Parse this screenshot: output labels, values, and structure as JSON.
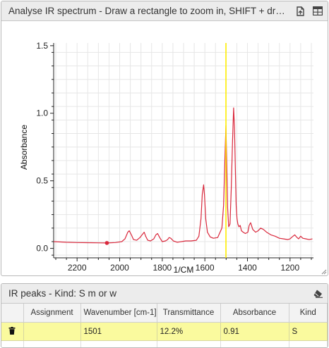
{
  "top_panel": {
    "title": "Analyse IR spectrum - Draw a rectangle to zoom in, SHIFT + drag…",
    "icons": [
      "export-icon",
      "table-view-icon"
    ]
  },
  "chart_data": {
    "type": "line",
    "title": "",
    "xlabel": "1/CM",
    "ylabel": "Absorbance",
    "xlim": [
      2310,
      1090
    ],
    "ylim": [
      -0.07,
      1.52
    ],
    "x_reversed": true,
    "x_ticks": [
      2200,
      2000,
      1800,
      1600,
      1400,
      1200
    ],
    "y_ticks": [
      0.0,
      0.5,
      1.0,
      1.5
    ],
    "x_tick_labels": [
      "2200",
      "2000",
      "1800",
      "1600",
      "1400",
      "1200"
    ],
    "y_tick_labels": [
      "0.0",
      "0.5",
      "1.0",
      "1.5"
    ],
    "grid": true,
    "line_color": "#d9283c",
    "cursor_color": "#ffee00",
    "cursor_x": 1501,
    "marker": {
      "x": 2060,
      "y": 0.04
    },
    "series": [
      {
        "x": [
          2310,
          2250,
          2200,
          2150,
          2100,
          2060,
          2020,
          1990,
          1975,
          1962,
          1955,
          1945,
          1935,
          1920,
          1905,
          1895,
          1885,
          1878,
          1868,
          1855,
          1840,
          1830,
          1822,
          1812,
          1800,
          1785,
          1775,
          1768,
          1760,
          1748,
          1730,
          1710,
          1690,
          1665,
          1640,
          1628,
          1618,
          1612,
          1606,
          1602,
          1596,
          1588,
          1575,
          1560,
          1540,
          1520,
          1512,
          1506,
          1501,
          1497,
          1493,
          1488,
          1482,
          1476,
          1470,
          1465,
          1461,
          1457,
          1453,
          1449,
          1445,
          1440,
          1434,
          1428,
          1420,
          1410,
          1398,
          1392,
          1385,
          1375,
          1362,
          1350,
          1338,
          1325,
          1310,
          1290,
          1270,
          1250,
          1230,
          1210,
          1200,
          1190,
          1178,
          1170,
          1160,
          1150,
          1140,
          1125,
          1110,
          1095
        ],
        "y": [
          0.05,
          0.045,
          0.043,
          0.042,
          0.041,
          0.04,
          0.043,
          0.05,
          0.07,
          0.12,
          0.13,
          0.1,
          0.065,
          0.06,
          0.08,
          0.1,
          0.12,
          0.09,
          0.06,
          0.055,
          0.07,
          0.1,
          0.11,
          0.08,
          0.05,
          0.055,
          0.065,
          0.08,
          0.075,
          0.055,
          0.045,
          0.05,
          0.055,
          0.055,
          0.06,
          0.09,
          0.22,
          0.4,
          0.47,
          0.4,
          0.22,
          0.12,
          0.085,
          0.075,
          0.08,
          0.15,
          0.32,
          0.65,
          0.91,
          0.62,
          0.3,
          0.16,
          0.18,
          0.45,
          0.8,
          1.04,
          0.9,
          0.6,
          0.32,
          0.22,
          0.18,
          0.16,
          0.17,
          0.13,
          0.12,
          0.11,
          0.12,
          0.17,
          0.19,
          0.14,
          0.12,
          0.13,
          0.15,
          0.14,
          0.12,
          0.1,
          0.09,
          0.075,
          0.07,
          0.065,
          0.07,
          0.085,
          0.1,
          0.085,
          0.07,
          0.09,
          0.075,
          0.07,
          0.065,
          0.07
        ]
      }
    ]
  },
  "bottom_panel": {
    "title": "IR peaks - Kind: S m or w",
    "columns": [
      "",
      "Assignment",
      "Wavenumber [cm-1]",
      "Transmittance",
      "Absorbance",
      "Kind"
    ],
    "rows": [
      {
        "delete_icon": "trash-icon",
        "assignment": "",
        "wavenumber": "1501",
        "transmittance": "12.2%",
        "absorbance": "0.91",
        "kind": "S"
      }
    ]
  }
}
